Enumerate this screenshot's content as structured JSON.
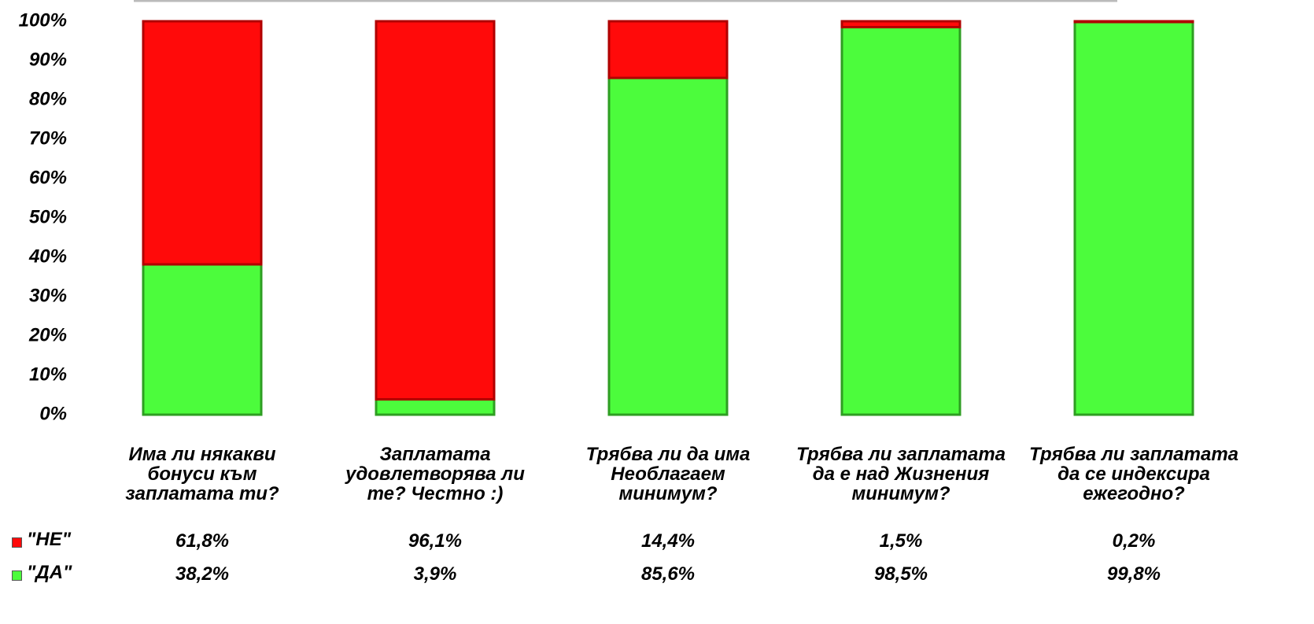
{
  "chart_data": {
    "type": "stacked_bar",
    "categories": [
      "Има ли някакви бонуси към заплатата ти?",
      "Заплатата удовлетворява ли те? Честно :)",
      "Трябва ли да има Необлагаем минимум?",
      "Трябва ли заплатата да е над Жизнения минимум?",
      "Трябва ли заплатата да се индексира ежегодно?"
    ],
    "series": [
      {
        "name": "\"НЕ\"",
        "color": "#ff0a0a",
        "values": [
          61.8,
          96.1,
          14.4,
          1.5,
          0.2
        ],
        "value_labels": [
          "61,8%",
          "96,1%",
          "14,4%",
          "1,5%",
          "0,2%"
        ]
      },
      {
        "name": "\"ДА\"",
        "color": "#4cfc3c",
        "values": [
          38.2,
          3.9,
          85.6,
          98.5,
          99.8
        ],
        "value_labels": [
          "38,2%",
          "3,9%",
          "85,6%",
          "98,5%",
          "99,8%"
        ]
      }
    ],
    "ylim": [
      0,
      100
    ],
    "yticks": [
      {
        "value": 0,
        "label": "0%"
      },
      {
        "value": 10,
        "label": "10%"
      },
      {
        "value": 20,
        "label": "20%"
      },
      {
        "value": 30,
        "label": "30%"
      },
      {
        "value": 40,
        "label": "40%"
      },
      {
        "value": 50,
        "label": "50%"
      },
      {
        "value": 60,
        "label": "60%"
      },
      {
        "value": 70,
        "label": "70%"
      },
      {
        "value": 80,
        "label": "80%"
      },
      {
        "value": 90,
        "label": "90%"
      },
      {
        "value": 100,
        "label": "100%"
      }
    ]
  }
}
